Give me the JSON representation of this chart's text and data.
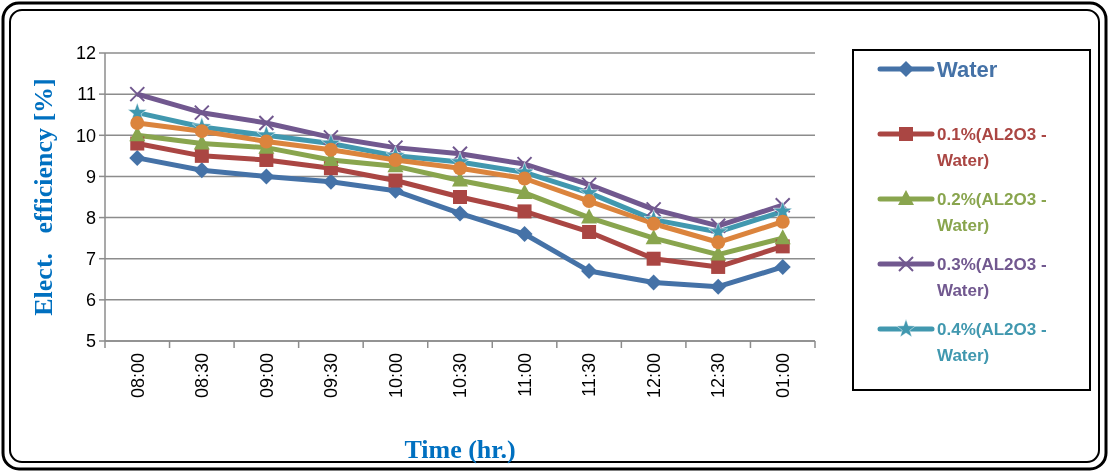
{
  "chart_data": {
    "type": "line",
    "xlabel": "Time (hr.)",
    "ylabel": "Elect.   efficiency [%]",
    "categories": [
      "08:00",
      "08:30",
      "09:00",
      "09:30",
      "10:00",
      "10:30",
      "11:00",
      "11:30",
      "12:00",
      "12:30",
      "01:00"
    ],
    "ylim": [
      5,
      12
    ],
    "yticks": [
      5,
      6,
      7,
      8,
      9,
      10,
      11,
      12
    ],
    "grid": "y",
    "legend": "right",
    "series": [
      {
        "name": "Water",
        "color": "#4572a7",
        "marker": "diamond",
        "values": [
          9.45,
          9.15,
          9.0,
          8.87,
          8.65,
          8.1,
          7.6,
          6.7,
          6.42,
          6.32,
          6.8
        ]
      },
      {
        "name": "0.1%(AL2O3 - Water)",
        "color": "#aa4643",
        "marker": "square",
        "values": [
          9.8,
          9.5,
          9.4,
          9.2,
          8.9,
          8.5,
          8.15,
          7.65,
          7.0,
          6.8,
          7.3
        ]
      },
      {
        "name": "0.2%(AL2O3 - Water)",
        "color": "#89a54e",
        "marker": "triangle",
        "values": [
          10.0,
          9.8,
          9.7,
          9.4,
          9.25,
          8.9,
          8.6,
          8.0,
          7.5,
          7.1,
          7.5
        ]
      },
      {
        "name": "0.3%(AL2O3 - Water)",
        "color": "#71588f",
        "marker": "cross",
        "values": [
          11.0,
          10.55,
          10.3,
          9.95,
          9.7,
          9.55,
          9.3,
          8.8,
          8.2,
          7.8,
          8.3
        ]
      },
      {
        "name": "0.4%(AL2O3 - Water)",
        "color": "#4198af",
        "marker": "star",
        "values": [
          10.55,
          10.2,
          10.0,
          9.8,
          9.5,
          9.35,
          9.1,
          8.6,
          7.95,
          7.65,
          8.15
        ]
      },
      {
        "color": "#db843d",
        "marker": "circle",
        "values": [
          10.3,
          10.1,
          9.85,
          9.65,
          9.4,
          9.2,
          8.95,
          8.4,
          7.85,
          7.4,
          7.9
        ]
      }
    ]
  }
}
